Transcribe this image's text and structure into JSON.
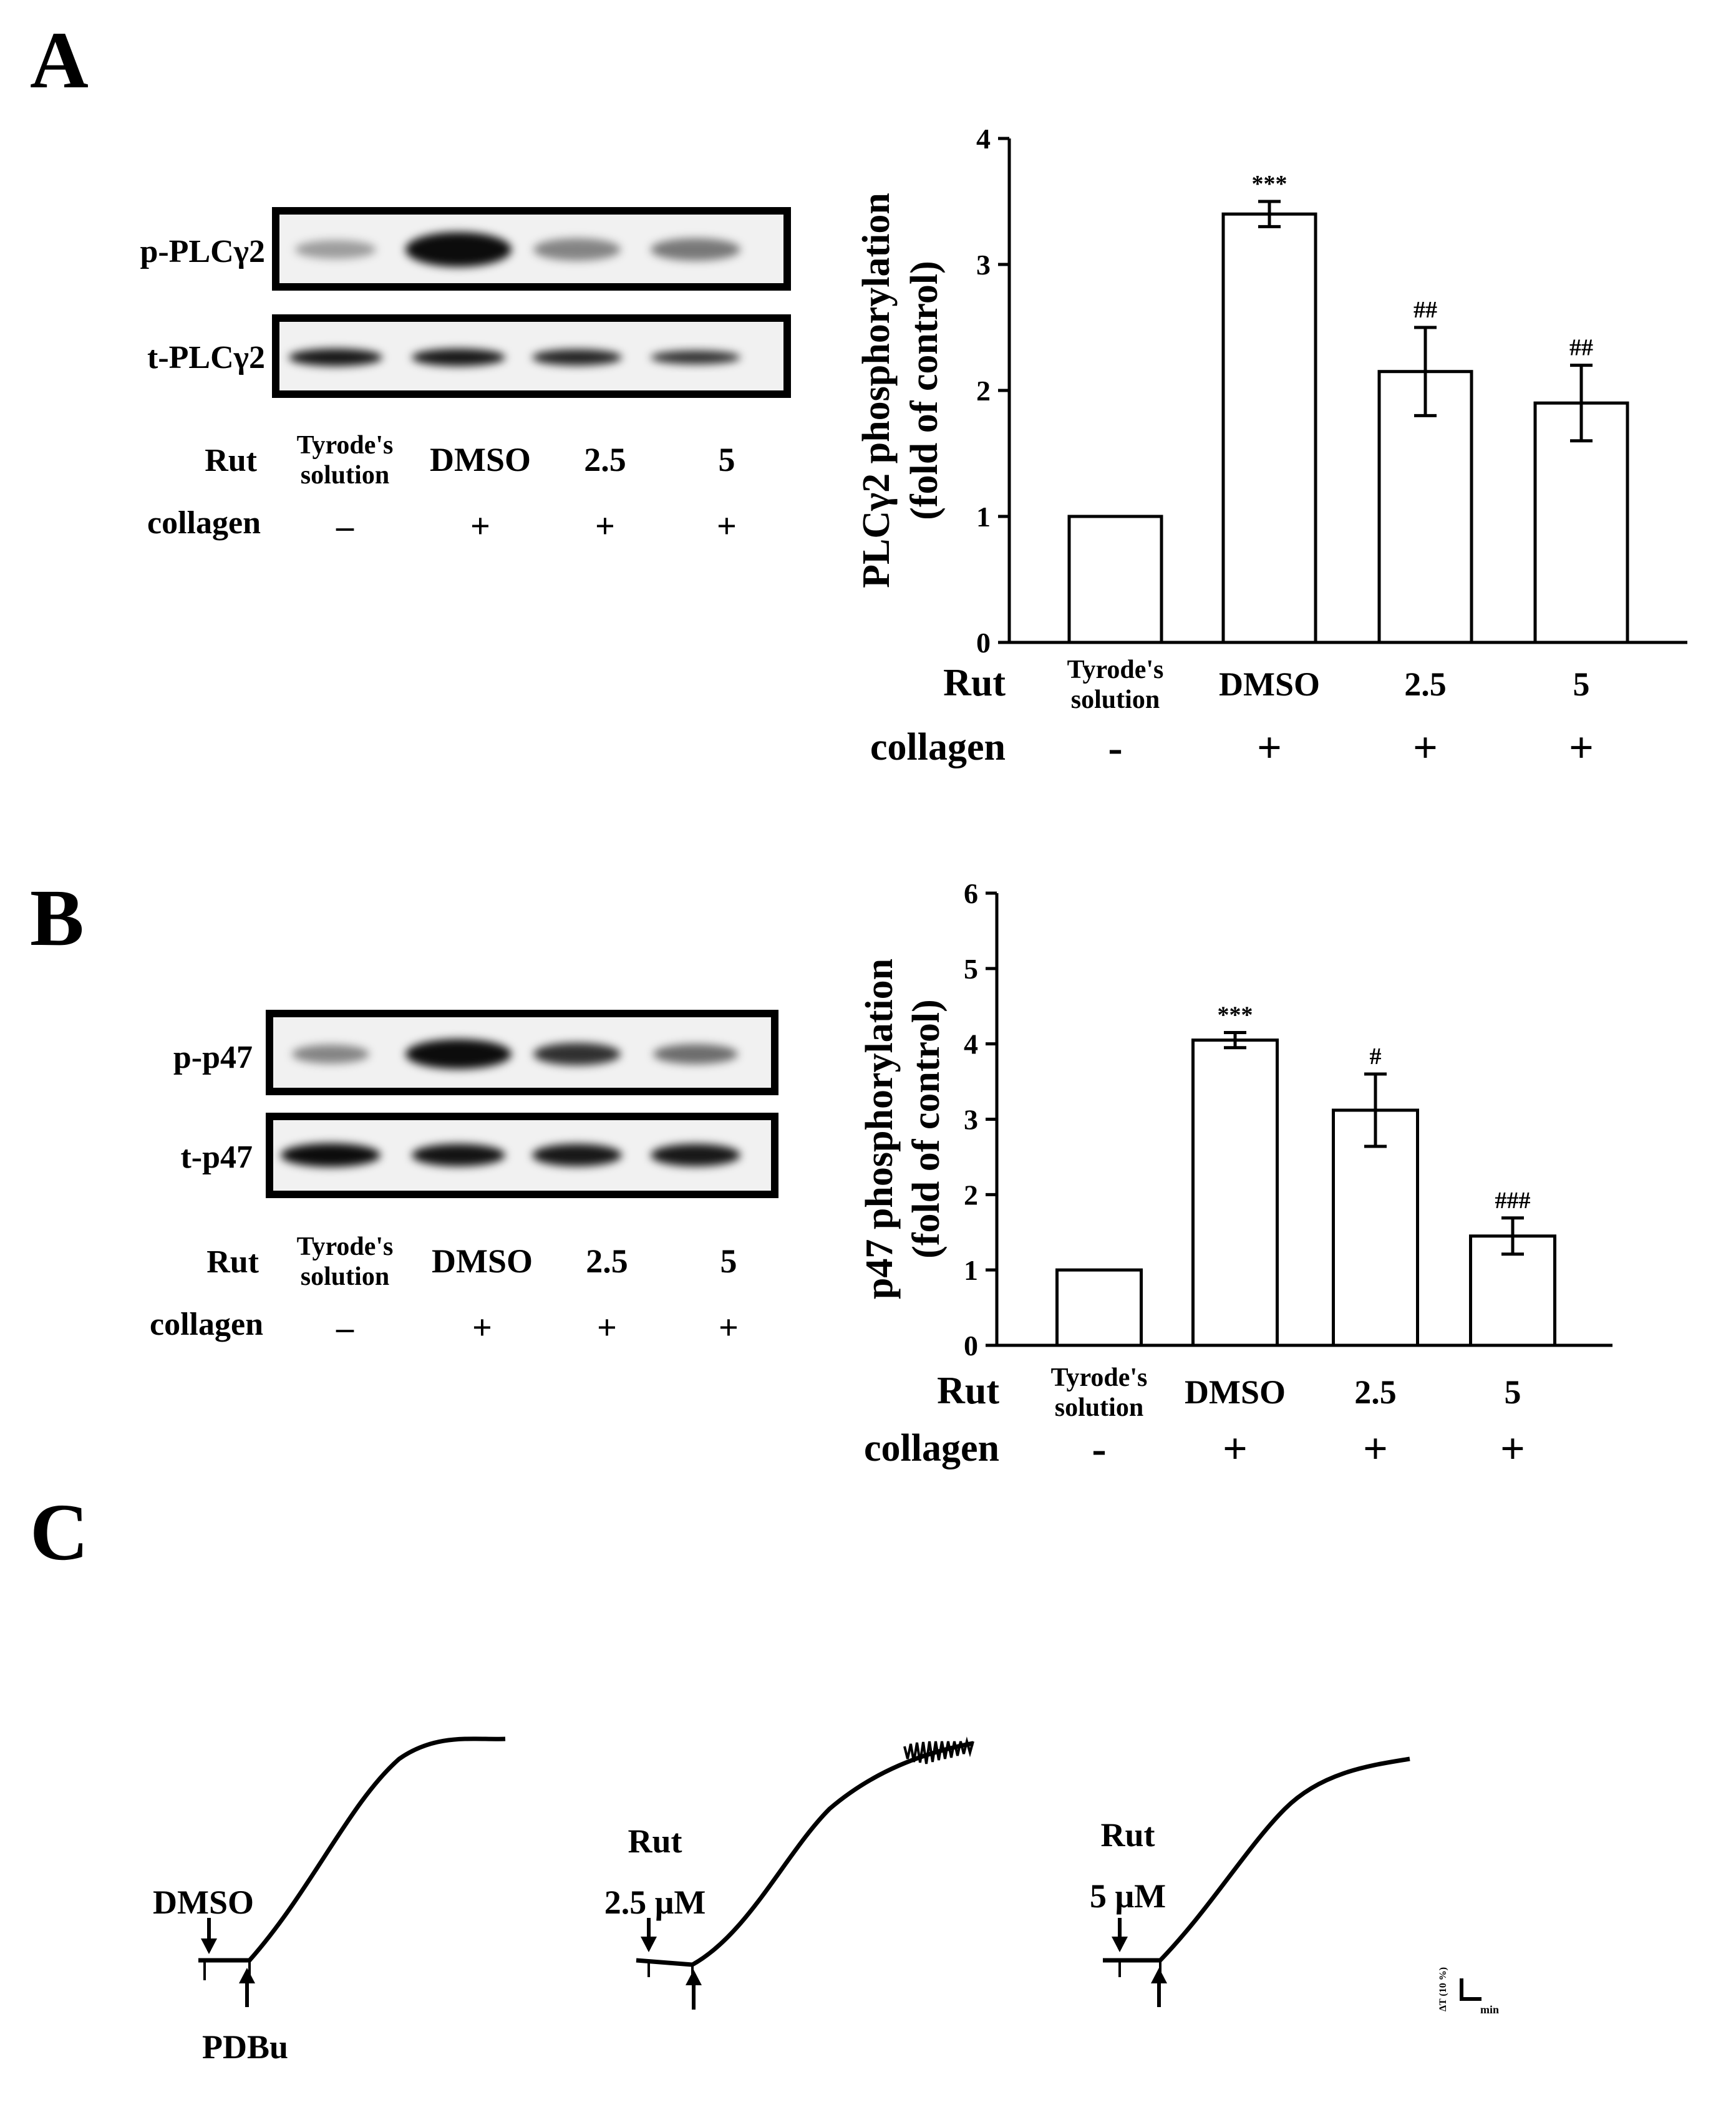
{
  "panels": {
    "A": {
      "letter": "A",
      "blot": {
        "rows": [
          "p-PLCγ2",
          "t-PLCγ2"
        ],
        "treatment_label": "Rut",
        "stimulus_label": "collagen",
        "lanes": [
          "Tyrode's|solution",
          "DMSO",
          "2.5",
          "5"
        ],
        "signs": [
          "–",
          "+",
          "+",
          "+"
        ]
      }
    },
    "B": {
      "letter": "B",
      "blot": {
        "rows": [
          "p-p47",
          "t-p47"
        ],
        "treatment_label": "Rut",
        "stimulus_label": "collagen",
        "lanes": [
          "Tyrode's|solution",
          "DMSO",
          "2.5",
          "5"
        ],
        "signs": [
          "–",
          "+",
          "+",
          "+"
        ]
      }
    },
    "C": {
      "letter": "C",
      "traces": [
        {
          "label_lines": [
            "DMSO"
          ],
          "bottom_label": "PDBu"
        },
        {
          "label_lines": [
            "Rut",
            "2.5 μM"
          ],
          "bottom_label": ""
        },
        {
          "label_lines": [
            "Rut",
            "5 μM"
          ],
          "bottom_label": ""
        }
      ],
      "scale_bar": {
        "y_label": "ΔT (10 %)",
        "x_label": "min"
      }
    }
  },
  "chart_data": [
    {
      "type": "bar",
      "ylabel_lines": [
        "PLCγ2 phosphorylation",
        "(fold of control)"
      ],
      "ylim": [
        0,
        4
      ],
      "yticks": [
        "0",
        "1",
        "2",
        "3",
        "4"
      ],
      "categories": [
        "Tyrode's|solution",
        "DMSO",
        "2.5",
        "5"
      ],
      "group_rows": [
        {
          "label": "Rut",
          "values": [
            "Tyrode's|solution",
            "DMSO",
            "2.5",
            "5"
          ]
        },
        {
          "label": "collagen",
          "values": [
            "-",
            "+",
            "+",
            "+"
          ]
        }
      ],
      "values": [
        1.0,
        3.4,
        2.15,
        1.9
      ],
      "errors": [
        0,
        0.1,
        0.35,
        0.3
      ],
      "annotations": [
        "",
        "***",
        "##",
        "##"
      ]
    },
    {
      "type": "bar",
      "ylabel_lines": [
        "p47 phosphorylation",
        "(fold of control)"
      ],
      "ylim": [
        0,
        6
      ],
      "yticks": [
        "0",
        "1",
        "2",
        "3",
        "4",
        "5",
        "6"
      ],
      "categories": [
        "Tyrode's|solution",
        "DMSO",
        "2.5",
        "5"
      ],
      "group_rows": [
        {
          "label": "Rut",
          "values": [
            "Tyrode's|solution",
            "DMSO",
            "2.5",
            "5"
          ]
        },
        {
          "label": "collagen",
          "values": [
            "-",
            "+",
            "+",
            "+"
          ]
        }
      ],
      "values": [
        1.0,
        4.05,
        3.12,
        1.45
      ],
      "errors": [
        0,
        0.1,
        0.48,
        0.24
      ],
      "annotations": [
        "",
        "***",
        "#",
        "###"
      ]
    }
  ]
}
